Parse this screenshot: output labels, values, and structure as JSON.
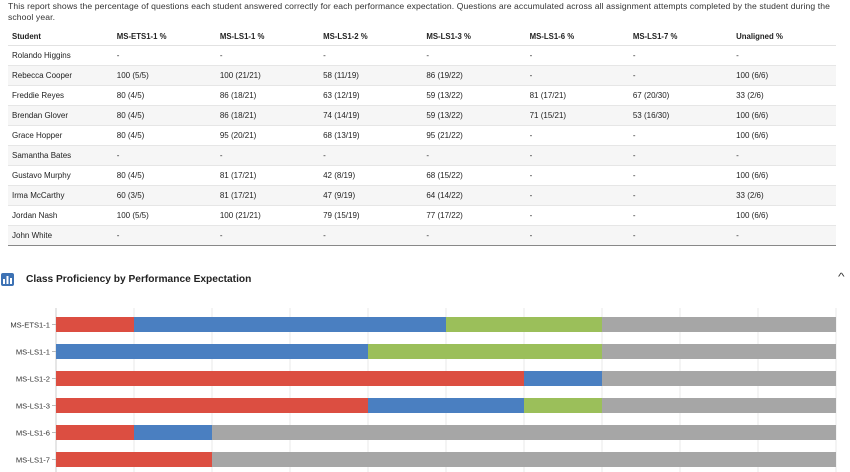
{
  "intro_text": "This report shows the percentage of questions each student answered correctly for each performance expectation. Questions are accumulated across all assignment attempts completed by the student during the school year.",
  "table": {
    "headers": [
      "Student",
      "MS-ETS1-1 %",
      "MS-LS1-1 %",
      "MS-LS1-2 %",
      "MS-LS1-3 %",
      "MS-LS1-6 %",
      "MS-LS1-7 %",
      "Unaligned %"
    ],
    "rows": [
      [
        "Rolando Higgins",
        "-",
        "-",
        "-",
        "-",
        "-",
        "-",
        "-"
      ],
      [
        "Rebecca Cooper",
        "100 (5/5)",
        "100 (21/21)",
        "58 (11/19)",
        "86 (19/22)",
        "-",
        "-",
        "100 (6/6)"
      ],
      [
        "Freddie Reyes",
        "80 (4/5)",
        "86 (18/21)",
        "63 (12/19)",
        "59 (13/22)",
        "81 (17/21)",
        "67 (20/30)",
        "33 (2/6)"
      ],
      [
        "Brendan Glover",
        "80 (4/5)",
        "86 (18/21)",
        "74 (14/19)",
        "59 (13/22)",
        "71 (15/21)",
        "53 (16/30)",
        "100 (6/6)"
      ],
      [
        "Grace Hopper",
        "80 (4/5)",
        "95 (20/21)",
        "68 (13/19)",
        "95 (21/22)",
        "-",
        "-",
        "100 (6/6)"
      ],
      [
        "Samantha Bates",
        "-",
        "-",
        "-",
        "-",
        "-",
        "-",
        "-"
      ],
      [
        "Gustavo Murphy",
        "80 (4/5)",
        "81 (17/21)",
        "42 (8/19)",
        "68 (15/22)",
        "-",
        "-",
        "100 (6/6)"
      ],
      [
        "Irma McCarthy",
        "60 (3/5)",
        "81 (17/21)",
        "47 (9/19)",
        "64 (14/22)",
        "-",
        "-",
        "33 (2/6)"
      ],
      [
        "Jordan Nash",
        "100 (5/5)",
        "100 (21/21)",
        "79 (15/19)",
        "77 (17/22)",
        "-",
        "-",
        "100 (6/6)"
      ],
      [
        "John White",
        "-",
        "-",
        "-",
        "-",
        "-",
        "-",
        "-"
      ]
    ]
  },
  "section": {
    "title": "Class Proficiency by Performance Expectation",
    "icon": "bar-chart-icon",
    "toggle_icon": "chevron-up-icon",
    "toggle_glyph": "^"
  },
  "chart_data": {
    "type": "bar",
    "orientation": "horizontal",
    "stacked": true,
    "categories": [
      "MS-ETS1-1",
      "MS-LS1-1",
      "MS-LS1-2",
      "MS-LS1-3",
      "MS-LS1-6",
      "MS-LS1-7"
    ],
    "series": [
      {
        "color": "#dc4e41",
        "values": [
          1,
          0,
          6,
          4,
          1,
          2
        ]
      },
      {
        "color": "#4a7fc1",
        "values": [
          4,
          4,
          1,
          2,
          1,
          0
        ]
      },
      {
        "color": "#9bbf5a",
        "values": [
          2,
          3,
          0,
          1,
          0,
          0
        ]
      },
      {
        "color": "#a6a6a6",
        "values": [
          3,
          3,
          3,
          3,
          8,
          8
        ]
      }
    ],
    "xlim": [
      0,
      10
    ],
    "grid": true,
    "title": "",
    "xlabel": "",
    "ylabel": ""
  }
}
